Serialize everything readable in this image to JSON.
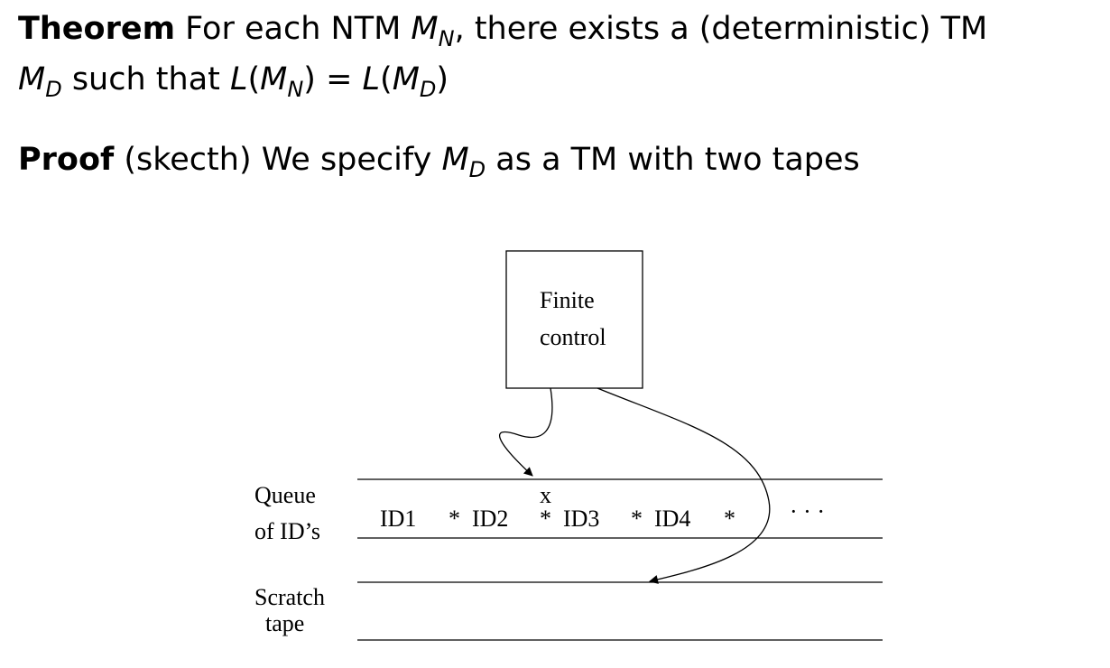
{
  "theorem": {
    "label": "Theorem",
    "text_before": " For each NTM ",
    "machine_n_base": "M",
    "machine_n_sub": "N",
    "text_middle": ", there exists a (deterministic) TM",
    "machine_d_base": "M",
    "machine_d_sub": "D",
    "text_after": " such that ",
    "lang_symbol": "L",
    "equals": " = "
  },
  "proof": {
    "label": "Proof",
    "text_before": " (skecth) We specify ",
    "machine_base": "M",
    "machine_sub": "D",
    "text_after": " as a TM with two tapes"
  },
  "diagram": {
    "control_line1": "Finite",
    "control_line2": "control",
    "queue_label_line1": "Queue",
    "queue_label_line2": "of ID’s",
    "scratch_label_line1": "Scratch",
    "scratch_label_line2": "tape",
    "cells": [
      "ID1",
      "*",
      "ID2",
      "*",
      "ID3",
      "*",
      "ID4",
      "*"
    ],
    "marker": "x",
    "ellipsis": "· · ·"
  }
}
